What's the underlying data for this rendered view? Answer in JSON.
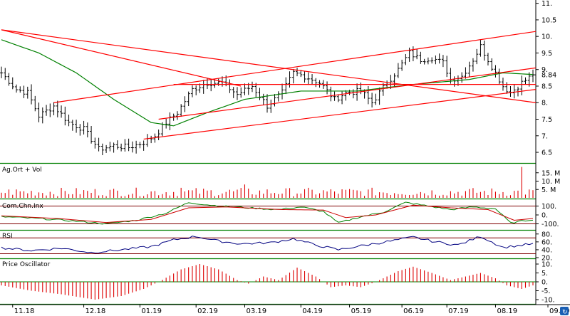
{
  "chart_data": [
    {
      "type": "candlestick",
      "panel": "price",
      "ylim": [
        6.2,
        11.1
      ],
      "yticks": [
        {
          "value": 6.5,
          "label": "6.5"
        },
        {
          "value": 7,
          "label": "7."
        },
        {
          "value": 7.5,
          "label": "7.5"
        },
        {
          "value": 8,
          "label": "8."
        },
        {
          "value": 8.5,
          "label": "8.5"
        },
        {
          "value": 9,
          "label": "9."
        },
        {
          "value": 9.5,
          "label": "9.5"
        },
        {
          "value": 10,
          "label": "10."
        },
        {
          "value": 10.5,
          "label": "10.5"
        },
        {
          "value": 11,
          "label": "11."
        }
      ],
      "last_value": 8.84,
      "last_value_label": "8.84",
      "anchors": [
        {
          "i": 0,
          "v": 8.9
        },
        {
          "i": 4,
          "v": 8.4
        },
        {
          "i": 7,
          "v": 8.3
        },
        {
          "i": 10,
          "v": 7.6
        },
        {
          "i": 14,
          "v": 7.9
        },
        {
          "i": 18,
          "v": 7.4
        },
        {
          "i": 22,
          "v": 7.2
        },
        {
          "i": 26,
          "v": 6.6
        },
        {
          "i": 30,
          "v": 6.7
        },
        {
          "i": 34,
          "v": 6.65
        },
        {
          "i": 38,
          "v": 6.8
        },
        {
          "i": 41,
          "v": 7.0
        },
        {
          "i": 44,
          "v": 7.4
        },
        {
          "i": 47,
          "v": 7.7
        },
        {
          "i": 51,
          "v": 8.4
        },
        {
          "i": 55,
          "v": 8.6
        },
        {
          "i": 59,
          "v": 8.6
        },
        {
          "i": 63,
          "v": 8.25
        },
        {
          "i": 67,
          "v": 8.5
        },
        {
          "i": 71,
          "v": 7.9
        },
        {
          "i": 75,
          "v": 8.3
        },
        {
          "i": 78,
          "v": 8.9
        },
        {
          "i": 81,
          "v": 8.8
        },
        {
          "i": 85,
          "v": 8.6
        },
        {
          "i": 89,
          "v": 8.1
        },
        {
          "i": 92,
          "v": 8.3
        },
        {
          "i": 96,
          "v": 8.35
        },
        {
          "i": 99,
          "v": 8.0
        },
        {
          "i": 103,
          "v": 8.6
        },
        {
          "i": 106,
          "v": 9.0
        },
        {
          "i": 109,
          "v": 9.5
        },
        {
          "i": 112,
          "v": 9.3
        },
        {
          "i": 115,
          "v": 9.35
        },
        {
          "i": 118,
          "v": 9.2
        },
        {
          "i": 120,
          "v": 8.7
        },
        {
          "i": 123,
          "v": 8.8
        },
        {
          "i": 126,
          "v": 9.3
        },
        {
          "i": 128,
          "v": 9.7
        },
        {
          "i": 131,
          "v": 9.1
        },
        {
          "i": 134,
          "v": 8.5
        },
        {
          "i": 136,
          "v": 8.3
        },
        {
          "i": 139,
          "v": 8.6
        },
        {
          "i": 142,
          "v": 8.84
        }
      ],
      "n_bars": 143,
      "ma_anchors": [
        {
          "i": 0,
          "v": 9.9
        },
        {
          "i": 10,
          "v": 9.5
        },
        {
          "i": 20,
          "v": 8.9
        },
        {
          "i": 30,
          "v": 8.1
        },
        {
          "i": 40,
          "v": 7.4
        },
        {
          "i": 46,
          "v": 7.3
        },
        {
          "i": 55,
          "v": 7.7
        },
        {
          "i": 65,
          "v": 8.1
        },
        {
          "i": 80,
          "v": 8.35
        },
        {
          "i": 95,
          "v": 8.35
        },
        {
          "i": 110,
          "v": 8.55
        },
        {
          "i": 125,
          "v": 8.7
        },
        {
          "i": 134,
          "v": 8.9
        },
        {
          "i": 142,
          "v": 8.85
        }
      ],
      "trend_lines": [
        {
          "i1": 0,
          "v1": 10.2,
          "i2": 142,
          "v2": 8.0
        },
        {
          "i1": 14,
          "v1": 8.0,
          "i2": 142,
          "v2": 10.15
        },
        {
          "i1": 42,
          "v1": 7.5,
          "i2": 142,
          "v2": 9.05
        },
        {
          "i1": 38,
          "v1": 6.9,
          "i2": 142,
          "v2": 8.4
        },
        {
          "i1": 46,
          "v1": 8.55,
          "i2": 142,
          "v2": 8.55
        },
        {
          "i1": 0,
          "v1": 10.2,
          "i2": 64,
          "v2": 8.5
        }
      ]
    },
    {
      "type": "bar",
      "panel": "volume",
      "title": "Ag.Ort + Vol",
      "ylim": [
        0,
        20
      ],
      "yticks": [
        {
          "value": 5,
          "label": "5. M"
        },
        {
          "value": 10,
          "label": "10. M"
        },
        {
          "value": 15,
          "label": "15. M"
        }
      ],
      "base_level": 3.2,
      "spikes": [
        {
          "i": 139,
          "v": 18.5
        },
        {
          "i": 65,
          "v": 8
        },
        {
          "i": 48,
          "v": 6
        }
      ]
    },
    {
      "type": "line",
      "panel": "cci",
      "title": "Com.Chn.Inx",
      "ylim": [
        -160,
        160
      ],
      "yticks": [
        {
          "value": 100,
          "label": "100."
        },
        {
          "value": 0,
          "label": "0."
        },
        {
          "value": -100,
          "label": "-100."
        }
      ],
      "reference_lines": [
        100,
        -100
      ],
      "series": [
        {
          "anchors": [
            {
              "i": 0,
              "v": -20
            },
            {
              "i": 10,
              "v": -40
            },
            {
              "i": 20,
              "v": -70
            },
            {
              "i": 28,
              "v": -100
            },
            {
              "i": 36,
              "v": -60
            },
            {
              "i": 44,
              "v": 20
            },
            {
              "i": 50,
              "v": 140
            },
            {
              "i": 58,
              "v": 100
            },
            {
              "i": 66,
              "v": 80
            },
            {
              "i": 74,
              "v": 60
            },
            {
              "i": 80,
              "v": 90
            },
            {
              "i": 86,
              "v": 40
            },
            {
              "i": 90,
              "v": -90
            },
            {
              "i": 96,
              "v": -20
            },
            {
              "i": 102,
              "v": 30
            },
            {
              "i": 108,
              "v": 140
            },
            {
              "i": 114,
              "v": 100
            },
            {
              "i": 120,
              "v": 60
            },
            {
              "i": 126,
              "v": 90
            },
            {
              "i": 132,
              "v": 70
            },
            {
              "i": 136,
              "v": -90
            },
            {
              "i": 142,
              "v": -50
            }
          ]
        },
        {
          "anchors": [
            {
              "i": 0,
              "v": -10
            },
            {
              "i": 15,
              "v": -40
            },
            {
              "i": 28,
              "v": -85
            },
            {
              "i": 40,
              "v": -50
            },
            {
              "i": 50,
              "v": 80
            },
            {
              "i": 60,
              "v": 90
            },
            {
              "i": 75,
              "v": 60
            },
            {
              "i": 86,
              "v": 55
            },
            {
              "i": 92,
              "v": -30
            },
            {
              "i": 100,
              "v": 0
            },
            {
              "i": 110,
              "v": 110
            },
            {
              "i": 120,
              "v": 80
            },
            {
              "i": 130,
              "v": 60
            },
            {
              "i": 137,
              "v": -60
            },
            {
              "i": 142,
              "v": -40
            }
          ]
        }
      ]
    },
    {
      "type": "line",
      "panel": "rsi",
      "title": "RSI",
      "ylim": [
        20,
        85
      ],
      "yticks": [
        {
          "value": 80,
          "label": "80."
        },
        {
          "value": 60,
          "label": "60."
        },
        {
          "value": 40,
          "label": "40."
        },
        {
          "value": 20,
          "label": "20."
        }
      ],
      "reference_lines": [
        70,
        30
      ],
      "anchors": [
        {
          "i": 0,
          "v": 45
        },
        {
          "i": 8,
          "v": 38
        },
        {
          "i": 16,
          "v": 44
        },
        {
          "i": 24,
          "v": 33
        },
        {
          "i": 32,
          "v": 40
        },
        {
          "i": 40,
          "v": 48
        },
        {
          "i": 46,
          "v": 65
        },
        {
          "i": 52,
          "v": 74
        },
        {
          "i": 58,
          "v": 62
        },
        {
          "i": 64,
          "v": 55
        },
        {
          "i": 72,
          "v": 58
        },
        {
          "i": 78,
          "v": 68
        },
        {
          "i": 84,
          "v": 52
        },
        {
          "i": 90,
          "v": 40
        },
        {
          "i": 96,
          "v": 50
        },
        {
          "i": 104,
          "v": 62
        },
        {
          "i": 110,
          "v": 72
        },
        {
          "i": 116,
          "v": 60
        },
        {
          "i": 122,
          "v": 52
        },
        {
          "i": 128,
          "v": 74
        },
        {
          "i": 134,
          "v": 46
        },
        {
          "i": 142,
          "v": 55
        }
      ]
    },
    {
      "type": "bar",
      "panel": "price_oscillator",
      "title": "Price Oscillator",
      "ylim": [
        -12,
        12
      ],
      "yticks": [
        {
          "value": 10,
          "label": "10."
        },
        {
          "value": 5,
          "label": "5."
        },
        {
          "value": 0,
          "label": "0."
        },
        {
          "value": -5,
          "label": "-5."
        },
        {
          "value": -10,
          "label": "-10."
        }
      ],
      "anchors": [
        {
          "i": 0,
          "v": -2
        },
        {
          "i": 8,
          "v": -5
        },
        {
          "i": 16,
          "v": -7
        },
        {
          "i": 25,
          "v": -10
        },
        {
          "i": 32,
          "v": -8
        },
        {
          "i": 38,
          "v": -4
        },
        {
          "i": 42,
          "v": 0
        },
        {
          "i": 48,
          "v": 7
        },
        {
          "i": 53,
          "v": 10
        },
        {
          "i": 58,
          "v": 7
        },
        {
          "i": 63,
          "v": 1
        },
        {
          "i": 66,
          "v": -1
        },
        {
          "i": 70,
          "v": 3
        },
        {
          "i": 74,
          "v": 1
        },
        {
          "i": 79,
          "v": 8
        },
        {
          "i": 84,
          "v": 3
        },
        {
          "i": 88,
          "v": -3
        },
        {
          "i": 92,
          "v": -2
        },
        {
          "i": 96,
          "v": -3
        },
        {
          "i": 100,
          "v": 0
        },
        {
          "i": 106,
          "v": 6
        },
        {
          "i": 110,
          "v": 8.5
        },
        {
          "i": 115,
          "v": 5
        },
        {
          "i": 120,
          "v": 1
        },
        {
          "i": 124,
          "v": 3
        },
        {
          "i": 128,
          "v": 5
        },
        {
          "i": 132,
          "v": 2
        },
        {
          "i": 135,
          "v": -2
        },
        {
          "i": 139,
          "v": -4
        },
        {
          "i": 142,
          "v": -2
        }
      ]
    }
  ],
  "x_axis": {
    "labels": [
      {
        "i": 3,
        "label": "11.18"
      },
      {
        "i": 22,
        "label": "12.18"
      },
      {
        "i": 37,
        "label": "01.19"
      },
      {
        "i": 52,
        "label": "02.19"
      },
      {
        "i": 65,
        "label": "03.19"
      },
      {
        "i": 80,
        "label": "04.19"
      },
      {
        "i": 93,
        "label": "05.19"
      },
      {
        "i": 107,
        "label": "06.19"
      },
      {
        "i": 119,
        "label": "07.19"
      },
      {
        "i": 132,
        "label": "08.19"
      },
      {
        "i": 146,
        "label": "09.19"
      }
    ]
  },
  "colors": {
    "candle": "#000000",
    "trend_line": "#ff0000",
    "moving_average_green": "#008000",
    "moving_average_red": "#cc0000",
    "volume_bar": "#dd0000",
    "rsi_line": "#000080",
    "panel_divider": "#008000",
    "reference_line": "#800000",
    "oscillator_bar": "#dd0000"
  },
  "corner_icon": "refresh-icon"
}
